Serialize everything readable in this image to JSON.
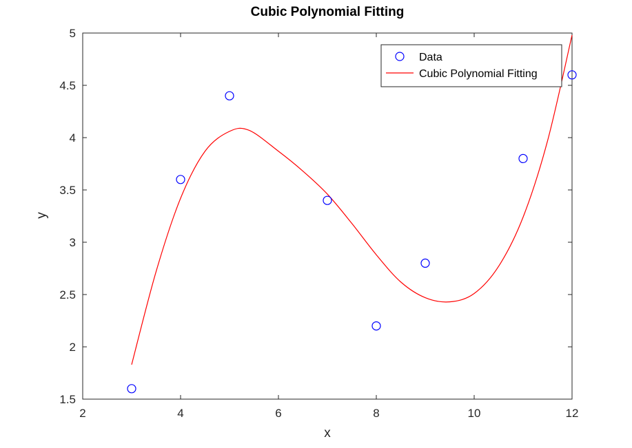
{
  "chart_data": {
    "type": "scatter",
    "title": "Cubic Polynomial Fitting",
    "xlabel": "x",
    "ylabel": "y",
    "xlim": [
      2,
      12
    ],
    "ylim": [
      1.5,
      5
    ],
    "xticks": [
      2,
      4,
      6,
      8,
      10,
      12
    ],
    "yticks": [
      1.5,
      2,
      2.5,
      3,
      3.5,
      4,
      4.5,
      5
    ],
    "grid": false,
    "legend_position": "top-right",
    "series": [
      {
        "name": "Data",
        "kind": "markers",
        "marker": "circle",
        "color": "#0000ff",
        "x": [
          3,
          4,
          5,
          7,
          8,
          9,
          11,
          12
        ],
        "y": [
          1.6,
          3.6,
          4.4,
          3.4,
          2.2,
          2.8,
          3.8,
          4.6
        ]
      },
      {
        "name": "Cubic Polynomial Fitting",
        "kind": "line",
        "color": "#ff0000",
        "x": [
          3,
          3.5,
          4,
          4.5,
          5,
          5.4,
          6,
          6.5,
          7,
          7.5,
          8,
          8.5,
          9,
          9.5,
          10,
          10.5,
          11,
          11.5,
          12
        ],
        "y": [
          1.83,
          2.72,
          3.42,
          3.87,
          4.06,
          4.07,
          3.87,
          3.68,
          3.46,
          3.18,
          2.88,
          2.62,
          2.47,
          2.43,
          2.51,
          2.77,
          3.24,
          3.97,
          4.98
        ]
      }
    ]
  }
}
